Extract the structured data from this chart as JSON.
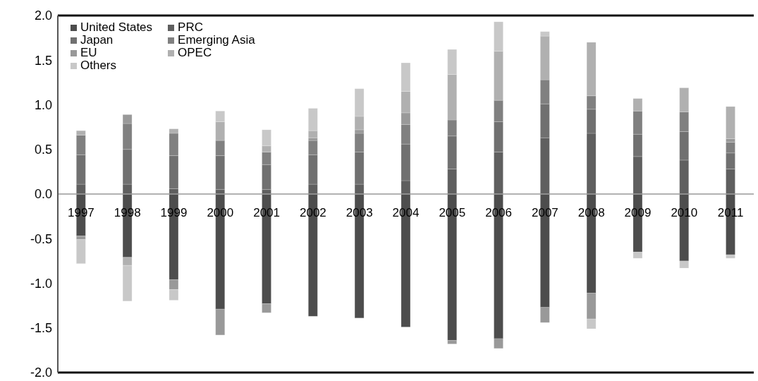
{
  "chart_data": {
    "type": "bar",
    "stacked": true,
    "categories": [
      "1997",
      "1998",
      "1999",
      "2000",
      "2001",
      "2002",
      "2003",
      "2004",
      "2005",
      "2006",
      "2007",
      "2008",
      "2009",
      "2010",
      "2011"
    ],
    "series": [
      {
        "name": "United States",
        "color": "#4d4d4d",
        "values": [
          -0.47,
          -0.71,
          -0.96,
          -1.29,
          -1.23,
          -1.37,
          -1.39,
          -1.49,
          -1.64,
          -1.62,
          -1.27,
          -1.11,
          -0.65,
          -0.75,
          -0.68
        ]
      },
      {
        "name": "PRC",
        "color": "#5f5f5f",
        "values": [
          0.11,
          0.11,
          0.06,
          0.05,
          0.05,
          0.11,
          0.11,
          0.15,
          0.28,
          0.47,
          0.63,
          0.68,
          0.42,
          0.38,
          0.28
        ]
      },
      {
        "name": "Japan",
        "color": "#707070",
        "values": [
          0.33,
          0.39,
          0.37,
          0.38,
          0.28,
          0.33,
          0.36,
          0.41,
          0.37,
          0.34,
          0.38,
          0.27,
          0.25,
          0.32,
          0.18
        ]
      },
      {
        "name": "Emerging Asia",
        "color": "#808080",
        "values": [
          0.22,
          0.29,
          0.25,
          0.17,
          0.14,
          0.16,
          0.21,
          0.22,
          0.18,
          0.24,
          0.27,
          0.15,
          0.26,
          0.22,
          0.12
        ]
      },
      {
        "name": "EU",
        "color": "#999999",
        "values": [
          -0.04,
          0.1,
          -0.11,
          -0.29,
          -0.1,
          0.03,
          0.04,
          0.13,
          -0.04,
          -0.11,
          -0.17,
          -0.29,
          null,
          null,
          0.04
        ]
      },
      {
        "name": "OPEC",
        "color": "#b0b0b0",
        "values": [
          0.05,
          -0.09,
          0.05,
          0.21,
          0.07,
          0.08,
          0.15,
          0.24,
          0.51,
          0.55,
          0.49,
          0.6,
          0.14,
          0.27,
          0.36
        ]
      },
      {
        "name": "Others",
        "color": "#c8c8c8",
        "values": [
          -0.27,
          -0.4,
          -0.12,
          0.12,
          0.18,
          0.25,
          0.31,
          0.32,
          0.28,
          0.33,
          0.05,
          -0.11,
          -0.07,
          -0.08,
          -0.04
        ]
      }
    ],
    "ylim": [
      -2,
      2
    ],
    "yticks": [
      {
        "value": -2,
        "label": "-2.0"
      },
      {
        "value": -1.5,
        "label": "-1.5"
      },
      {
        "value": -1,
        "label": "-1.0"
      },
      {
        "value": -0.5,
        "label": "-0.5"
      },
      {
        "value": 0,
        "label": "0.0"
      },
      {
        "value": 0.5,
        "label": "0.5"
      },
      {
        "value": 1,
        "label": "1.0"
      },
      {
        "value": 1.5,
        "label": "1.5"
      },
      {
        "value": 2,
        "label": "2.0"
      }
    ],
    "grid": false,
    "legend": "top left"
  }
}
